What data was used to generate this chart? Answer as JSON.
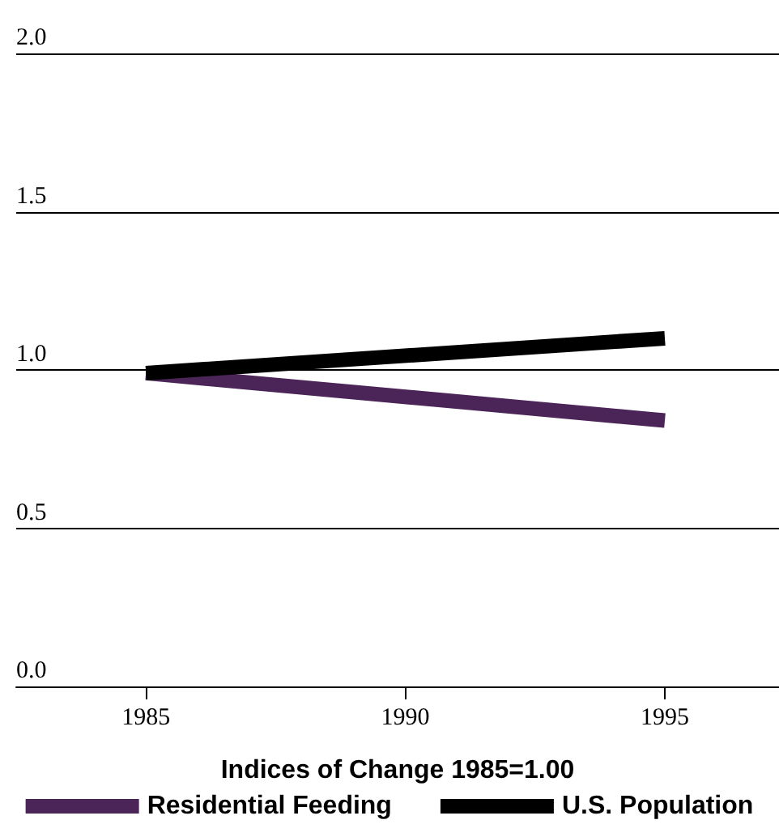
{
  "chart_data": {
    "type": "line",
    "xlabel": "Indices of Change 1985=1.00",
    "x": [
      1985,
      1995
    ],
    "series": [
      {
        "name": "Residential Feeding",
        "color": "#4b2458",
        "values": [
          0.99,
          0.84
        ]
      },
      {
        "name": "U.S. Population",
        "color": "#000000",
        "values": [
          0.99,
          1.1
        ]
      }
    ],
    "xlim": [
      1982.5,
      1997.2
    ],
    "xticks": [
      1985,
      1990,
      1995
    ],
    "ylim": [
      0,
      2
    ],
    "yticks": [
      {
        "value": 0,
        "label": "0.0"
      },
      {
        "value": 0.5,
        "label": "0.5"
      },
      {
        "value": 1,
        "label": "1.0"
      },
      {
        "value": 1.5,
        "label": "1.5"
      },
      {
        "value": 2,
        "label": "2.0"
      }
    ],
    "grid": "y",
    "legend": "bottom",
    "marker": "none",
    "line_style": "solid"
  }
}
